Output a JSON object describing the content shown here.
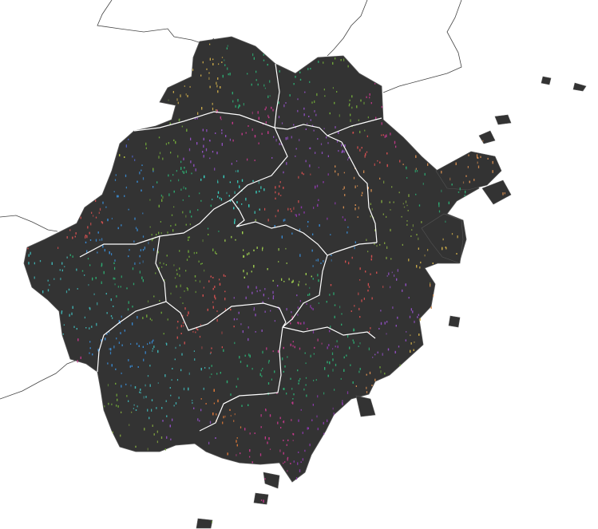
{
  "map": {
    "background": "#ffffff",
    "land_fill": "#333333",
    "province_outline_color": "#555555",
    "prefecture_border_color": "#ffffff",
    "neighbor_border_color": "#444444",
    "dot_palette": [
      "#c9a94a",
      "#e07a3a",
      "#8a3aa8",
      "#3a8ad0",
      "#2ea870",
      "#c23a8a",
      "#6fa33a",
      "#3ad0c0",
      "#b0c040",
      "#d05050",
      "#5060c0",
      "#a0d050",
      "#d08a50",
      "#40b0b0",
      "#9050c0",
      "#80a040"
    ],
    "prefecture_count": 11,
    "labels": []
  }
}
